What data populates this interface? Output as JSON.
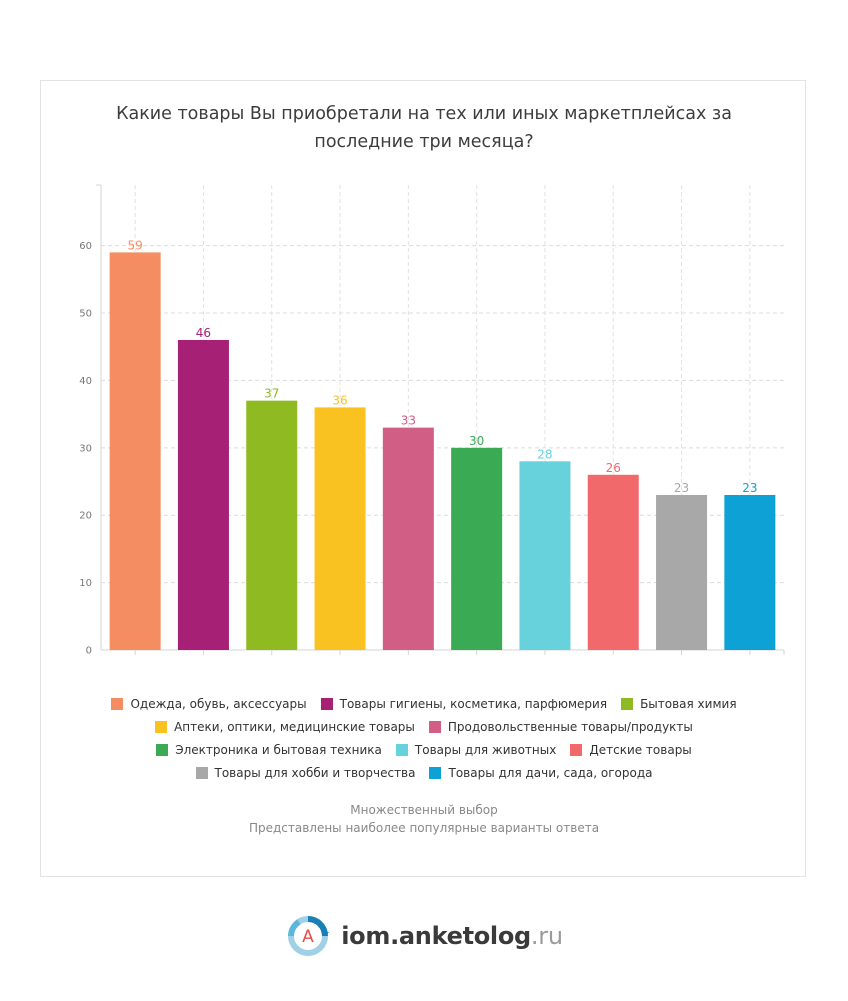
{
  "title_line1": "Какие товары Вы приобретали на тех или иных маркетплейсах за",
  "title_line2": "последние три месяца?",
  "chart_data": {
    "type": "bar",
    "title": "Какие товары Вы приобретали на тех или иных маркетплейсах за последние три месяца?",
    "categories": [
      "Одежда, обувь, аксессуары",
      "Товары гигиены, косметика, парфюмерия",
      "Бытовая химия",
      "Аптеки, оптики, медицинские товары",
      "Продовольственные товары/продукты",
      "Электроника и бытовая техника",
      "Товары для животных",
      "Детские товары",
      "Товары для хобби и творчества",
      "Товары для дачи, сада, огорода"
    ],
    "values": [
      59,
      46,
      37,
      36,
      33,
      30,
      28,
      26,
      23,
      23
    ],
    "colors": [
      "#f58d63",
      "#a62176",
      "#8fba22",
      "#f9c221",
      "#d05e85",
      "#3aaa55",
      "#67d1dc",
      "#f2696b",
      "#a8a8a8",
      "#0ea1d6"
    ],
    "yticks": [
      0,
      10,
      20,
      30,
      40,
      50,
      60
    ],
    "ylim": [
      0,
      69
    ],
    "xlabel": "",
    "ylabel": "",
    "grid": true,
    "legend_position": "bottom"
  },
  "notes": {
    "line1": "Множественный выбор",
    "line2": "Представлены наиболее популярные варианты ответа"
  },
  "footer": {
    "logo_letter": "А",
    "brand": "iom.anketolog",
    "tld": ".ru"
  }
}
